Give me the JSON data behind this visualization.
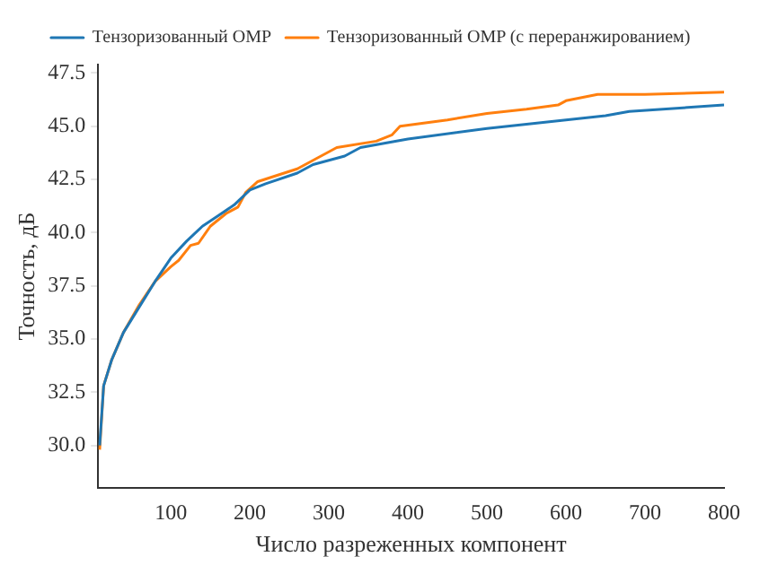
{
  "chart_data": {
    "type": "line",
    "xlabel": "Число разреженных компонент",
    "ylabel": "Точность, дБ",
    "xlim": [
      8,
      800
    ],
    "ylim": [
      28,
      47.9
    ],
    "xticks": [
      100,
      200,
      300,
      400,
      500,
      600,
      700,
      800
    ],
    "yticks": [
      {
        "value": 30,
        "label": "30.0"
      },
      {
        "value": 32.5,
        "label": "32.5"
      },
      {
        "value": 35,
        "label": "35.0"
      },
      {
        "value": 37.5,
        "label": "37.5"
      },
      {
        "value": 40,
        "label": "40.0"
      },
      {
        "value": 42.5,
        "label": "42.5"
      },
      {
        "value": 45,
        "label": "45.0"
      },
      {
        "value": 47.5,
        "label": "47.5"
      }
    ],
    "grid": false,
    "legend": "top",
    "marker": "none",
    "line_style": "solid",
    "series": [
      {
        "name": "Тензоризованный OMP",
        "color": "#1f77b4",
        "x": [
          10,
          15,
          25,
          40,
          60,
          80,
          100,
          120,
          140,
          160,
          180,
          200,
          220,
          260,
          280,
          320,
          340,
          400,
          500,
          600,
          650,
          680,
          800
        ],
        "values": [
          30.0,
          32.8,
          34.0,
          35.3,
          36.5,
          37.7,
          38.8,
          39.6,
          40.3,
          40.8,
          41.3,
          42.0,
          42.3,
          42.8,
          43.2,
          43.6,
          44.0,
          44.4,
          44.9,
          45.3,
          45.5,
          45.7,
          46.0
        ]
      },
      {
        "name": "Тензоризованный OMP (с переранжированием)",
        "color": "#ff7f0e",
        "x": [
          10,
          15,
          25,
          40,
          60,
          80,
          100,
          110,
          125,
          135,
          150,
          170,
          185,
          195,
          210,
          260,
          290,
          310,
          360,
          380,
          390,
          450,
          500,
          550,
          590,
          600,
          640,
          700,
          800
        ],
        "values": [
          29.8,
          32.8,
          34.0,
          35.3,
          36.6,
          37.7,
          38.4,
          38.7,
          39.4,
          39.5,
          40.3,
          40.9,
          41.2,
          41.9,
          42.4,
          43.0,
          43.6,
          44.0,
          44.3,
          44.6,
          45.0,
          45.3,
          45.6,
          45.8,
          46.0,
          46.2,
          46.5,
          46.5,
          46.6
        ]
      }
    ]
  }
}
